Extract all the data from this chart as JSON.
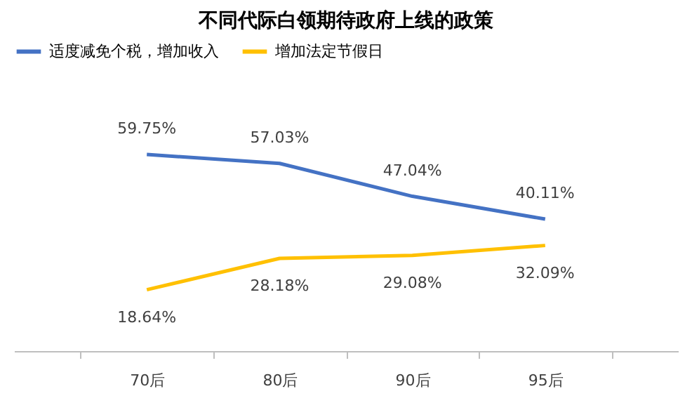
{
  "chart_data": {
    "type": "line",
    "title": "不同代际白领期待政府上线的政策",
    "categories": [
      "70后",
      "80后",
      "90后",
      "95后"
    ],
    "series": [
      {
        "name": "适度减免个税，增加收入",
        "color": "#4472c4",
        "values": [
          59.75,
          57.03,
          47.04,
          40.11
        ],
        "value_labels": [
          "59.75%",
          "57.03%",
          "47.04%",
          "40.11%"
        ]
      },
      {
        "name": "增加法定节假日",
        "color": "#ffc000",
        "values": [
          18.64,
          28.18,
          29.08,
          32.09
        ],
        "value_labels": [
          "18.64%",
          "28.18%",
          "29.08%",
          "32.09%"
        ]
      }
    ],
    "legend": "top",
    "tick_labels": "x",
    "line_style": "solid"
  }
}
